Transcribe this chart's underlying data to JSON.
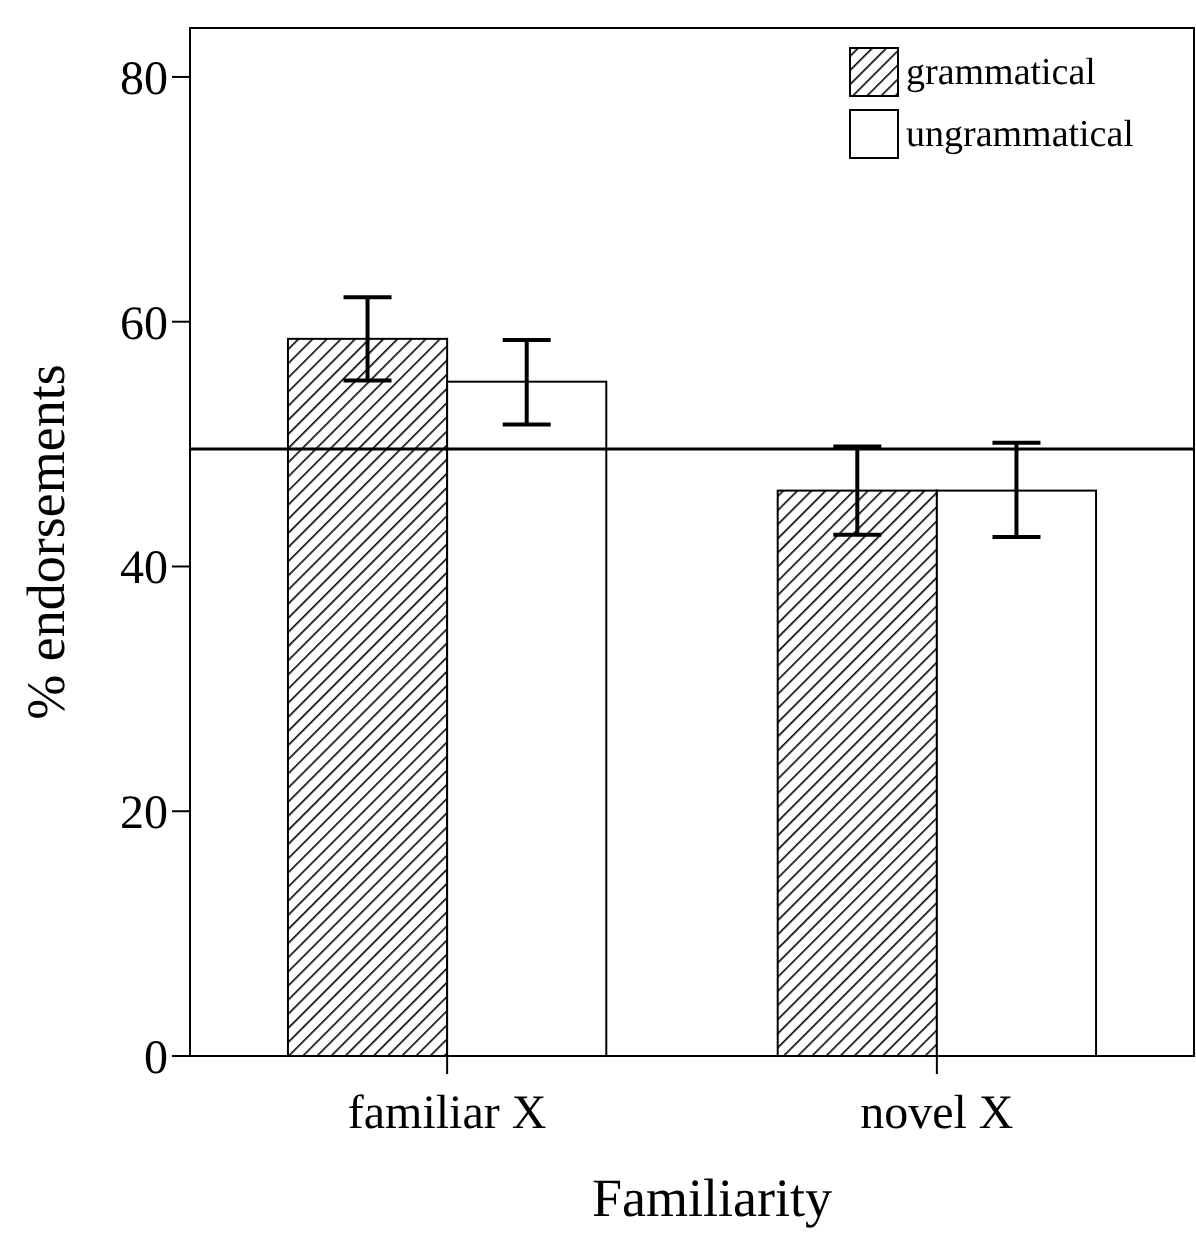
{
  "chart_data": {
    "type": "bar",
    "xlabel": "Familiarity",
    "ylabel": "% endorsements",
    "categories": [
      "familiar X",
      "novel X"
    ],
    "series": [
      {
        "name": "grammatical",
        "color": "#000000",
        "values": [
          58.6,
          46.2
        ],
        "errors": [
          [
            55.2,
            62.0
          ],
          [
            42.6,
            49.8
          ]
        ]
      },
      {
        "name": "ungrammatical",
        "color": "#ffffff",
        "values": [
          55.1,
          46.2
        ],
        "errors": [
          [
            51.6,
            58.5
          ],
          [
            42.4,
            50.1
          ]
        ]
      }
    ],
    "ylim": [
      0,
      84
    ],
    "yticks": [
      0,
      20,
      40,
      60,
      80
    ],
    "grid": false,
    "legend": "top right",
    "ref_lines": [
      {
        "axis": "y",
        "value": 49.6,
        "color": "#000000"
      }
    ]
  }
}
